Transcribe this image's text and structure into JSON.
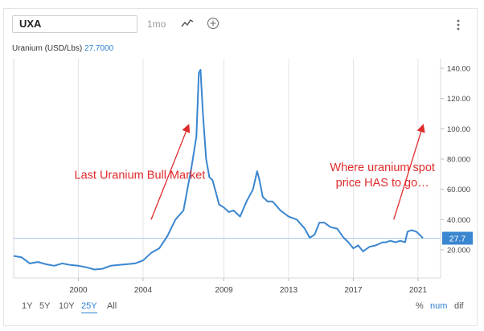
{
  "toolbar": {
    "ticker": "UXA",
    "period": "1mo",
    "chart_type_icon": "line-chart-icon",
    "compare_icon": "plus-circle-icon",
    "menu_icon": "vertical-dots-icon"
  },
  "series_label": {
    "name": "Uranium (USD/Lbs)",
    "value": "27.7000"
  },
  "last_price_tag": "27.7",
  "ranges": [
    "1Y",
    "5Y",
    "10Y",
    "25Y",
    "All"
  ],
  "active_range": "25Y",
  "scales": [
    "%",
    "num",
    "dif"
  ],
  "active_scale": "num",
  "colors": {
    "line": "#3a86d0",
    "annotation": "#e02b2b",
    "price_tag": "#3a86d0",
    "grid": "#e6e6e6"
  },
  "chart_data": {
    "type": "line",
    "title": "",
    "xlabel": "",
    "ylabel": "",
    "ylim": [
      0,
      150
    ],
    "xlim": [
      1996.0,
      2021.5
    ],
    "x_ticks": [
      {
        "value": 2000,
        "label": "2000"
      },
      {
        "value": 2004,
        "label": "2004"
      },
      {
        "value": 2009,
        "label": "2009"
      },
      {
        "value": 2013,
        "label": "2013"
      },
      {
        "value": 2017,
        "label": "2017"
      },
      {
        "value": 2021,
        "label": "2021"
      }
    ],
    "y_ticks": [
      {
        "value": 20,
        "label": "20.000"
      },
      {
        "value": 40,
        "label": "40.000"
      },
      {
        "value": 60,
        "label": "60.000"
      },
      {
        "value": 80,
        "label": "80.000"
      },
      {
        "value": 100,
        "label": "100.00"
      },
      {
        "value": 120,
        "label": "120.00"
      },
      {
        "value": 140,
        "label": "140.00"
      }
    ],
    "grid": "vertical",
    "reference_line": 27.7,
    "series": [
      {
        "name": "Uranium (USD/Lbs)",
        "x": [
          1996.0,
          1996.5,
          1997.0,
          1997.5,
          1998.0,
          1998.5,
          1999.0,
          1999.5,
          2000.0,
          2000.5,
          2001.0,
          2001.5,
          2002.0,
          2002.5,
          2003.0,
          2003.5,
          2004.0,
          2004.5,
          2005.0,
          2005.5,
          2006.0,
          2006.5,
          2007.0,
          2007.3,
          2007.45,
          2007.55,
          2007.7,
          2007.9,
          2008.1,
          2008.3,
          2008.5,
          2008.7,
          2009.0,
          2009.3,
          2009.6,
          2010.0,
          2010.4,
          2010.8,
          2011.05,
          2011.2,
          2011.4,
          2011.7,
          2012.0,
          2012.5,
          2013.0,
          2013.5,
          2014.0,
          2014.3,
          2014.6,
          2014.9,
          2015.2,
          2015.6,
          2016.0,
          2016.4,
          2016.7,
          2017.0,
          2017.3,
          2017.6,
          2018.0,
          2018.4,
          2018.8,
          2019.0,
          2019.3,
          2019.6,
          2019.9,
          2020.2,
          2020.35,
          2020.6,
          2020.9,
          2021.1,
          2021.3
        ],
        "values": [
          16,
          15,
          11,
          12,
          10.5,
          9.5,
          11,
          10,
          9.5,
          8.5,
          7,
          7.5,
          9.5,
          10,
          10.5,
          11,
          13,
          18,
          21,
          29,
          40,
          46,
          75,
          95,
          137,
          139,
          110,
          80,
          68,
          66,
          58,
          50,
          48,
          45,
          46,
          42,
          52,
          60,
          72,
          66,
          55,
          52,
          52,
          46,
          42,
          40,
          34,
          28,
          30,
          38,
          38,
          35,
          34,
          28,
          25,
          21,
          23,
          19,
          22,
          23,
          25,
          25,
          26,
          25,
          26,
          25,
          32,
          33,
          32,
          30,
          27.7
        ]
      }
    ],
    "annotations": [
      {
        "text": "Last Uranium Bull Market",
        "x": 2003.8,
        "y": 67
      },
      {
        "text": "Where uranium spot",
        "x": 2018.8,
        "y": 72
      },
      {
        "text": "price HAS to go…",
        "x": 2018.8,
        "y": 62
      }
    ],
    "arrows": [
      {
        "from": [
          2004.5,
          40
        ],
        "to": [
          2006.8,
          102
        ]
      },
      {
        "from": [
          2019.5,
          40
        ],
        "to": [
          2021.3,
          102
        ]
      }
    ]
  }
}
